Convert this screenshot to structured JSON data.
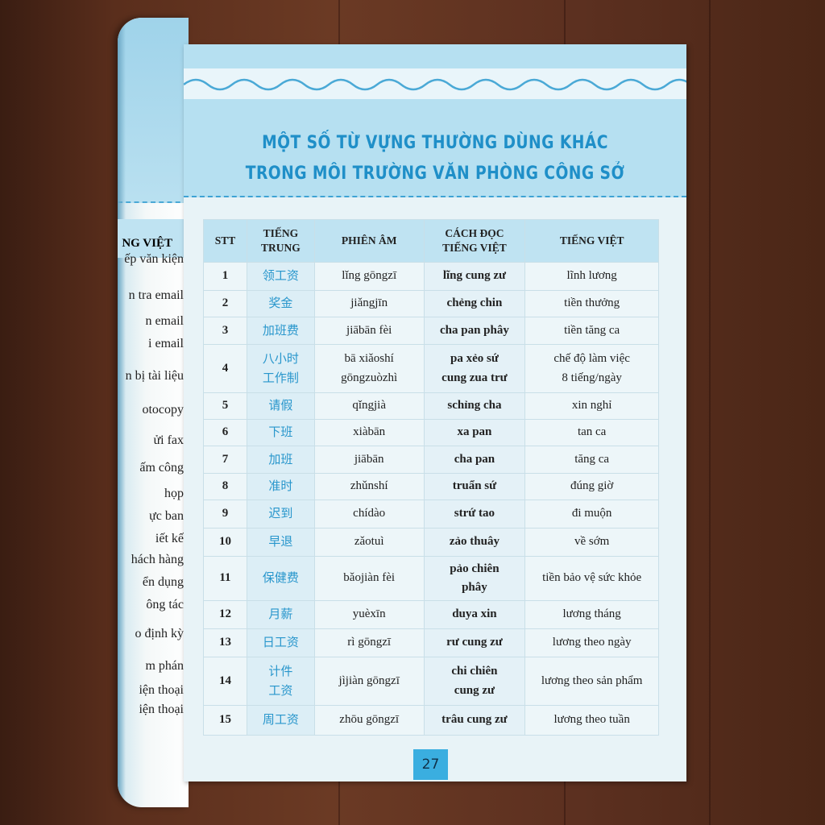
{
  "title_line1": "MỘT SỐ TỪ VỰNG THƯỜNG DÙNG KHÁC",
  "title_line2": "TRONG MÔI TRƯỜNG VĂN PHÒNG CÔNG SỞ",
  "headers": [
    "STT",
    "TIẾNG\nTRUNG",
    "PHIÊN ÂM",
    "CÁCH ĐỌC\nTIẾNG VIỆT",
    "TIẾNG VIỆT"
  ],
  "rows": [
    {
      "stt": "1",
      "zh": "领工资",
      "py": "lǐng gōngzī",
      "cd": "lĩng cung zư",
      "vi": "lĩnh lương"
    },
    {
      "stt": "2",
      "zh": "奖金",
      "py": "jiǎngjīn",
      "cd": "chẻng chin",
      "vi": "tiền thưởng"
    },
    {
      "stt": "3",
      "zh": "加班费",
      "py": "jiābān fèi",
      "cd": "cha pan phây",
      "vi": "tiền tăng ca"
    },
    {
      "stt": "4",
      "zh": "八小时\n工作制",
      "py": "bā xiǎoshí\ngōngzuòzhì",
      "cd": "pa xẻo sứ\ncung zua trư",
      "vi": "chế độ làm việc\n8 tiếng/ngày"
    },
    {
      "stt": "5",
      "zh": "请假",
      "py": "qǐngjià",
      "cd": "schỉng cha",
      "vi": "xin nghỉ"
    },
    {
      "stt": "6",
      "zh": "下班",
      "py": "xiàbān",
      "cd": "xa pan",
      "vi": "tan ca"
    },
    {
      "stt": "7",
      "zh": "加班",
      "py": "jiābān",
      "cd": "cha pan",
      "vi": "tăng ca"
    },
    {
      "stt": "8",
      "zh": "准时",
      "py": "zhǔnshí",
      "cd": "truẩn sứ",
      "vi": "đúng giờ"
    },
    {
      "stt": "9",
      "zh": "迟到",
      "py": "chídào",
      "cd": "strứ tao",
      "vi": "đi muộn"
    },
    {
      "stt": "10",
      "zh": "早退",
      "py": "zǎotuì",
      "cd": "zảo thuây",
      "vi": "về sớm"
    },
    {
      "stt": "11",
      "zh": "保健费",
      "py": "bǎojiàn fèi",
      "cd": "pảo chiên\nphây",
      "vi": "tiền bảo vệ sức khỏe"
    },
    {
      "stt": "12",
      "zh": "月薪",
      "py": "yuèxīn",
      "cd": "duya xin",
      "vi": "lương tháng"
    },
    {
      "stt": "13",
      "zh": "日工资",
      "py": "rì gōngzī",
      "cd": "rư cung zư",
      "vi": "lương theo ngày"
    },
    {
      "stt": "14",
      "zh": "计件\n工资",
      "py": "jìjiàn gōngzī",
      "cd": "chi chiên\ncung zư",
      "vi": "lương theo sản phẩm"
    },
    {
      "stt": "15",
      "zh": "周工资",
      "py": "zhōu gōngzī",
      "cd": "trâu cung zư",
      "vi": "lương theo tuần"
    }
  ],
  "page_number": "27",
  "left_page": {
    "header": "NG VIỆT",
    "items": [
      "ếp văn kiện",
      "n tra email",
      "n email",
      "i email",
      "n bị tài liệu",
      "otocopy",
      "ửi fax",
      "ấm công",
      " họp",
      "ực ban",
      "iết kế",
      "hách hàng",
      "ển dụng",
      "ông tác",
      "o định kỳ",
      "m phán",
      "iện thoại",
      "iện thoại"
    ]
  },
  "colors": {
    "accent": "#2896cc",
    "band": "#b6e0f1",
    "wood": "#5a2e1c"
  }
}
